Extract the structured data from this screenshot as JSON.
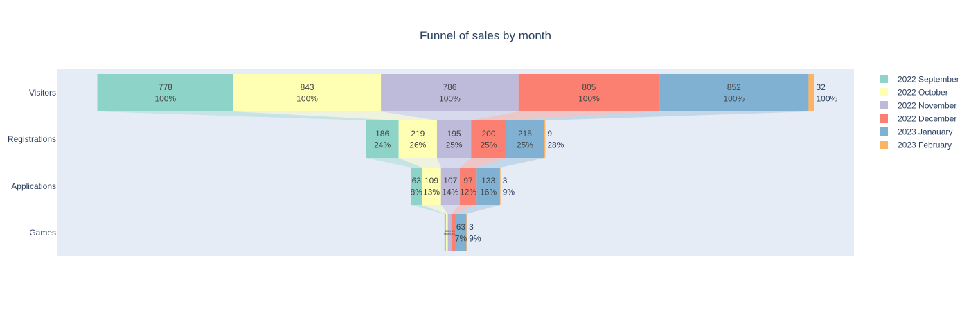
{
  "chart_data": {
    "type": "funnel",
    "title": "Funnel of sales by month",
    "stages": [
      "Visitors",
      "Registrations",
      "Applications",
      "Games"
    ],
    "series": [
      {
        "name": "2022 September",
        "color": "#8dd3c7",
        "values": [
          778,
          186,
          63,
          9
        ],
        "percent_labels": [
          "100%",
          "24%",
          "8%",
          "1%"
        ]
      },
      {
        "name": "2022 October",
        "color": "#ffffb3",
        "values": [
          843,
          219,
          109,
          10
        ],
        "percent_labels": [
          "100%",
          "26%",
          "13%",
          "1%"
        ]
      },
      {
        "name": "2022 November",
        "color": "#bebada",
        "values": [
          786,
          195,
          107,
          20
        ],
        "percent_labels": [
          "100%",
          "25%",
          "14%",
          "3%"
        ]
      },
      {
        "name": "2022 December",
        "color": "#fb8072",
        "values": [
          805,
          200,
          97,
          23
        ],
        "percent_labels": [
          "100%",
          "25%",
          "12%",
          "3%"
        ]
      },
      {
        "name": "2023 Janauary",
        "color": "#80b1d3",
        "values": [
          852,
          215,
          133,
          63
        ],
        "percent_labels": [
          "100%",
          "25%",
          "16%",
          "7%"
        ]
      },
      {
        "name": "2023 February",
        "color": "#fdb462",
        "values": [
          32,
          9,
          3,
          3
        ],
        "percent_labels": [
          "100%",
          "28%",
          "9%",
          "9%"
        ]
      }
    ],
    "legend_position": "right",
    "plot_background": "#e5ecf6"
  }
}
